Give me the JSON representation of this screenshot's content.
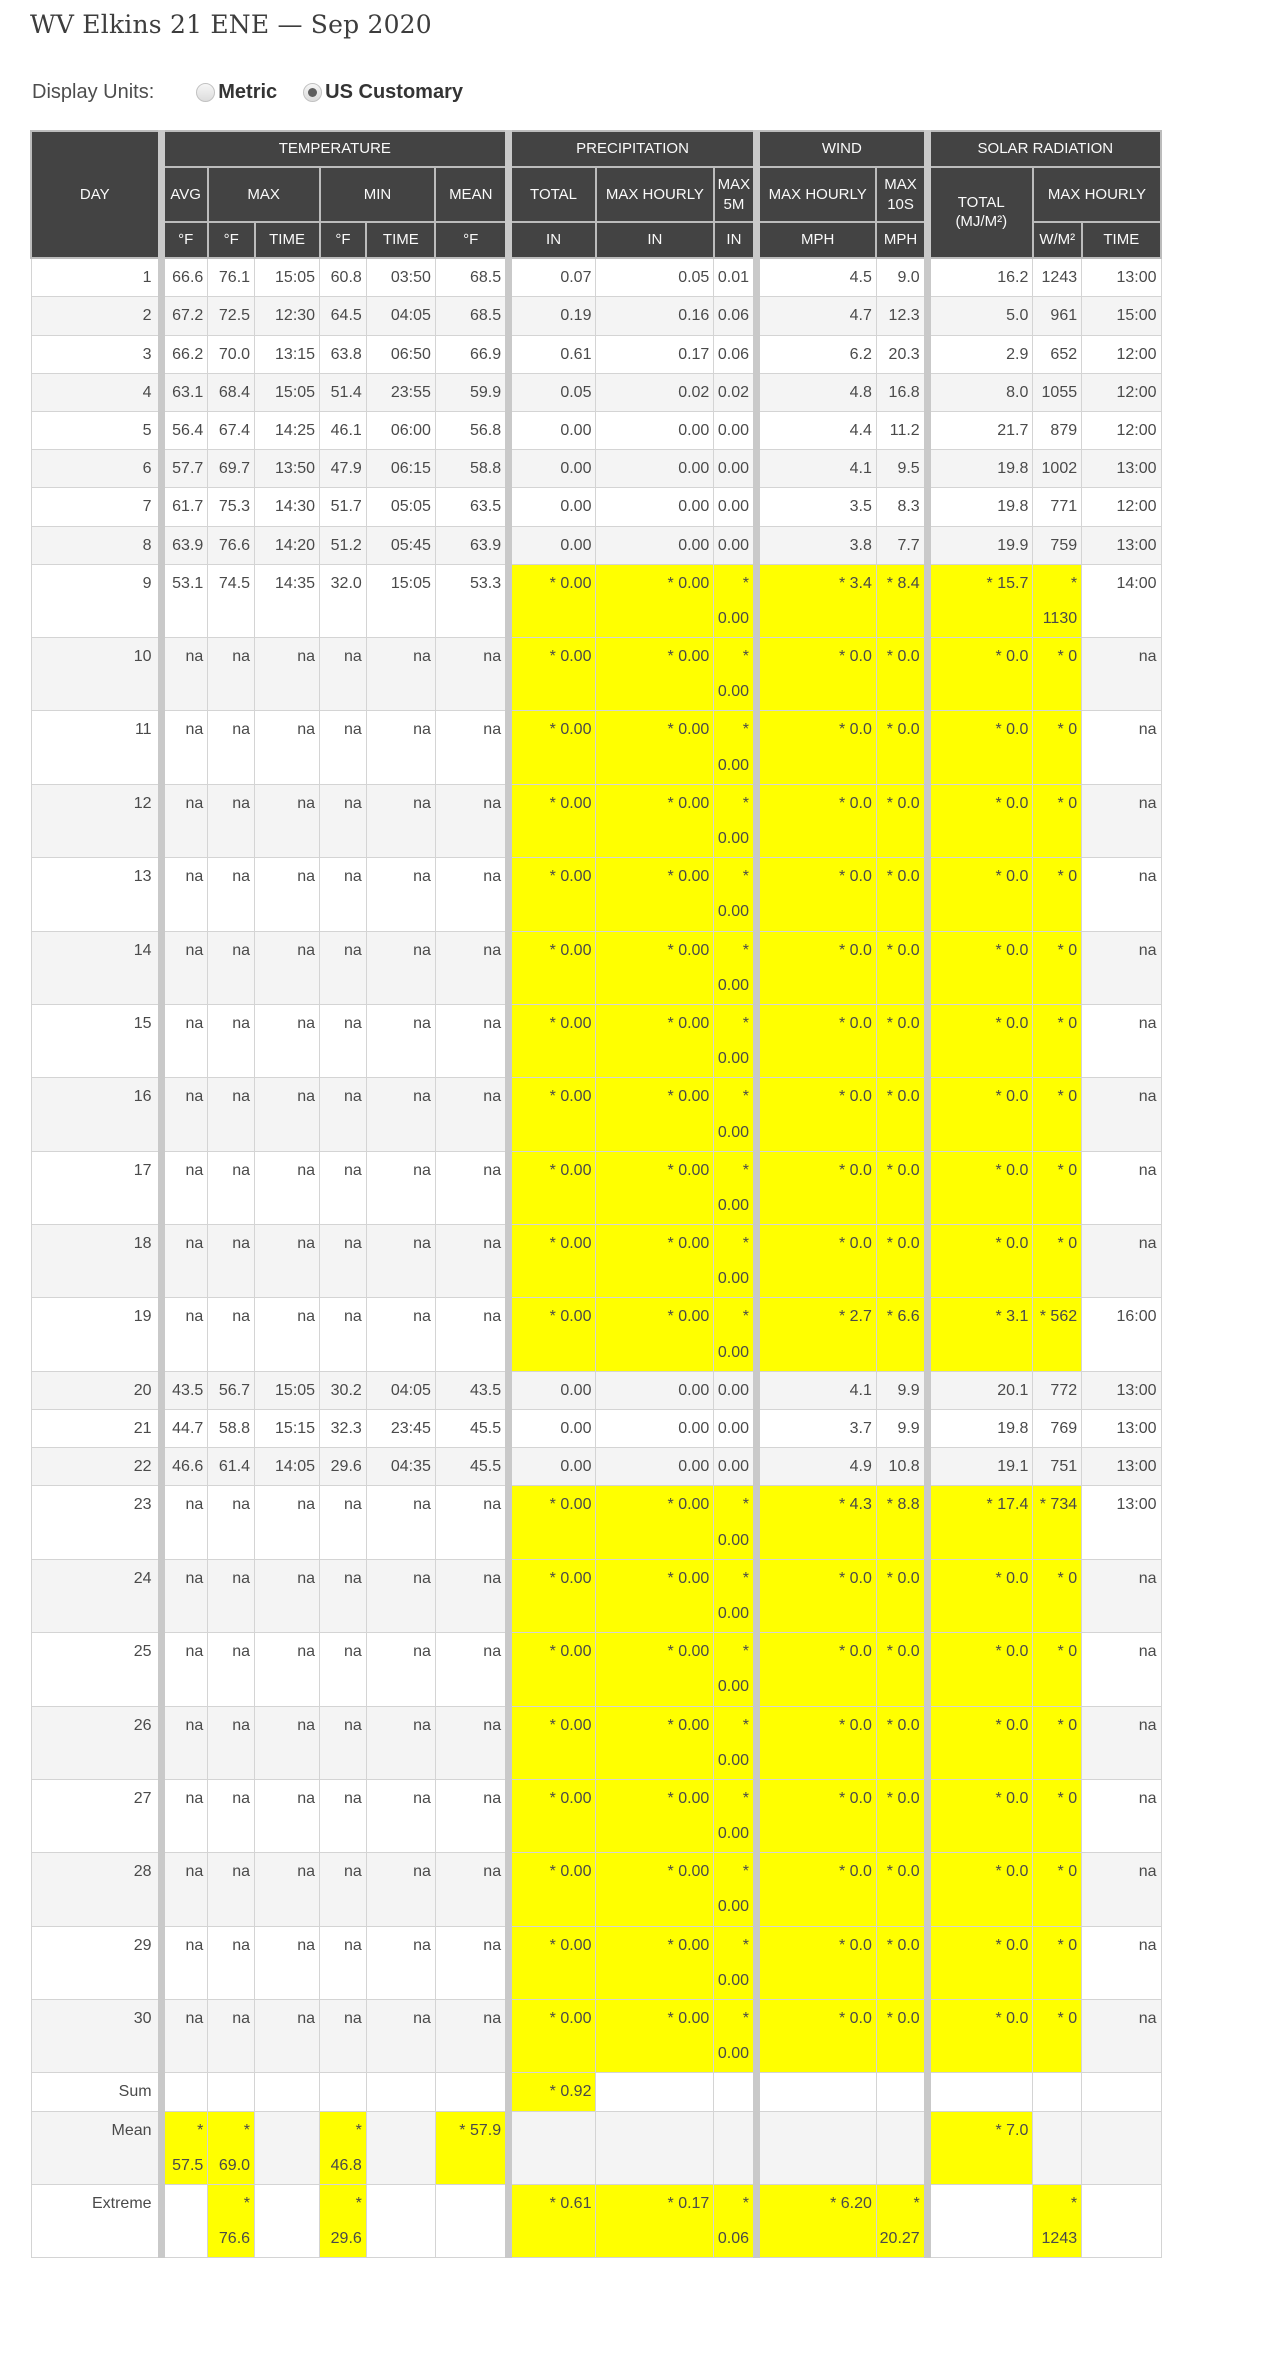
{
  "title": "WV Elkins 21 ENE — Sep 2020",
  "display_units": {
    "label": "Display Units:",
    "options": [
      {
        "label": "Metric",
        "selected": false
      },
      {
        "label": "US Customary",
        "selected": true
      }
    ]
  },
  "colors": {
    "highlight": "#ffff00",
    "header_bg": "#434343"
  },
  "table": {
    "header": {
      "day": "DAY",
      "groups": [
        "TEMPERATURE",
        "PRECIPITATION",
        "WIND",
        "SOLAR RADIATION"
      ],
      "sub": [
        "AVG",
        "MAX",
        "MIN",
        "MEAN",
        "TOTAL",
        "MAX HOURLY",
        "MAX 5M",
        "MAX HOURLY",
        "MAX 10S",
        "TOTAL (MJ/M²)",
        "MAX HOURLY"
      ],
      "units": [
        "°F",
        "°F",
        "TIME",
        "°F",
        "TIME",
        "°F",
        "IN",
        "IN",
        "IN",
        "MPH",
        "MPH",
        "W/M²",
        "TIME"
      ]
    },
    "col_keys": [
      "day",
      "temp-avg",
      "temp-max-f",
      "temp-max-time",
      "temp-min-f",
      "temp-min-time",
      "temp-mean",
      "precip-total",
      "precip-max-hourly",
      "precip-max-5m",
      "wind-max-hourly",
      "wind-max-10s",
      "solar-total",
      "solar-max-wm2",
      "solar-max-time"
    ],
    "rows": [
      {
        "cells": [
          "1",
          "66.6",
          "76.1",
          "15:05",
          "60.8",
          "03:50",
          "68.5",
          "0.07",
          "0.05",
          "0.01",
          "4.5",
          "9.0",
          "16.2",
          "1243",
          "13:00"
        ],
        "hl": []
      },
      {
        "cells": [
          "2",
          "67.2",
          "72.5",
          "12:30",
          "64.5",
          "04:05",
          "68.5",
          "0.19",
          "0.16",
          "0.06",
          "4.7",
          "12.3",
          "5.0",
          "961",
          "15:00"
        ],
        "hl": []
      },
      {
        "cells": [
          "3",
          "66.2",
          "70.0",
          "13:15",
          "63.8",
          "06:50",
          "66.9",
          "0.61",
          "0.17",
          "0.06",
          "6.2",
          "20.3",
          "2.9",
          "652",
          "12:00"
        ],
        "hl": []
      },
      {
        "cells": [
          "4",
          "63.1",
          "68.4",
          "15:05",
          "51.4",
          "23:55",
          "59.9",
          "0.05",
          "0.02",
          "0.02",
          "4.8",
          "16.8",
          "8.0",
          "1055",
          "12:00"
        ],
        "hl": []
      },
      {
        "cells": [
          "5",
          "56.4",
          "67.4",
          "14:25",
          "46.1",
          "06:00",
          "56.8",
          "0.00",
          "0.00",
          "0.00",
          "4.4",
          "11.2",
          "21.7",
          "879",
          "12:00"
        ],
        "hl": []
      },
      {
        "cells": [
          "6",
          "57.7",
          "69.7",
          "13:50",
          "47.9",
          "06:15",
          "58.8",
          "0.00",
          "0.00",
          "0.00",
          "4.1",
          "9.5",
          "19.8",
          "1002",
          "13:00"
        ],
        "hl": []
      },
      {
        "cells": [
          "7",
          "61.7",
          "75.3",
          "14:30",
          "51.7",
          "05:05",
          "63.5",
          "0.00",
          "0.00",
          "0.00",
          "3.5",
          "8.3",
          "19.8",
          "771",
          "12:00"
        ],
        "hl": []
      },
      {
        "cells": [
          "8",
          "63.9",
          "76.6",
          "14:20",
          "51.2",
          "05:45",
          "63.9",
          "0.00",
          "0.00",
          "0.00",
          "3.8",
          "7.7",
          "19.9",
          "759",
          "13:00"
        ],
        "hl": []
      },
      {
        "cells": [
          "9",
          "53.1",
          "74.5",
          "14:35",
          "32.0",
          "15:05",
          "53.3",
          "* 0.00",
          "* 0.00",
          "* 0.00",
          "* 3.4",
          "* 8.4",
          "* 15.7",
          "* 1130",
          "14:00"
        ],
        "hl": [
          7,
          8,
          9,
          10,
          11,
          12,
          13
        ]
      },
      {
        "cells": [
          "10",
          "na",
          "na",
          "na",
          "na",
          "na",
          "na",
          "* 0.00",
          "* 0.00",
          "* 0.00",
          "* 0.0",
          "* 0.0",
          "* 0.0",
          "* 0",
          "na"
        ],
        "hl": [
          7,
          8,
          9,
          10,
          11,
          12,
          13
        ]
      },
      {
        "cells": [
          "11",
          "na",
          "na",
          "na",
          "na",
          "na",
          "na",
          "* 0.00",
          "* 0.00",
          "* 0.00",
          "* 0.0",
          "* 0.0",
          "* 0.0",
          "* 0",
          "na"
        ],
        "hl": [
          7,
          8,
          9,
          10,
          11,
          12,
          13
        ]
      },
      {
        "cells": [
          "12",
          "na",
          "na",
          "na",
          "na",
          "na",
          "na",
          "* 0.00",
          "* 0.00",
          "* 0.00",
          "* 0.0",
          "* 0.0",
          "* 0.0",
          "* 0",
          "na"
        ],
        "hl": [
          7,
          8,
          9,
          10,
          11,
          12,
          13
        ]
      },
      {
        "cells": [
          "13",
          "na",
          "na",
          "na",
          "na",
          "na",
          "na",
          "* 0.00",
          "* 0.00",
          "* 0.00",
          "* 0.0",
          "* 0.0",
          "* 0.0",
          "* 0",
          "na"
        ],
        "hl": [
          7,
          8,
          9,
          10,
          11,
          12,
          13
        ]
      },
      {
        "cells": [
          "14",
          "na",
          "na",
          "na",
          "na",
          "na",
          "na",
          "* 0.00",
          "* 0.00",
          "* 0.00",
          "* 0.0",
          "* 0.0",
          "* 0.0",
          "* 0",
          "na"
        ],
        "hl": [
          7,
          8,
          9,
          10,
          11,
          12,
          13
        ]
      },
      {
        "cells": [
          "15",
          "na",
          "na",
          "na",
          "na",
          "na",
          "na",
          "* 0.00",
          "* 0.00",
          "* 0.00",
          "* 0.0",
          "* 0.0",
          "* 0.0",
          "* 0",
          "na"
        ],
        "hl": [
          7,
          8,
          9,
          10,
          11,
          12,
          13
        ]
      },
      {
        "cells": [
          "16",
          "na",
          "na",
          "na",
          "na",
          "na",
          "na",
          "* 0.00",
          "* 0.00",
          "* 0.00",
          "* 0.0",
          "* 0.0",
          "* 0.0",
          "* 0",
          "na"
        ],
        "hl": [
          7,
          8,
          9,
          10,
          11,
          12,
          13
        ]
      },
      {
        "cells": [
          "17",
          "na",
          "na",
          "na",
          "na",
          "na",
          "na",
          "* 0.00",
          "* 0.00",
          "* 0.00",
          "* 0.0",
          "* 0.0",
          "* 0.0",
          "* 0",
          "na"
        ],
        "hl": [
          7,
          8,
          9,
          10,
          11,
          12,
          13
        ]
      },
      {
        "cells": [
          "18",
          "na",
          "na",
          "na",
          "na",
          "na",
          "na",
          "* 0.00",
          "* 0.00",
          "* 0.00",
          "* 0.0",
          "* 0.0",
          "* 0.0",
          "* 0",
          "na"
        ],
        "hl": [
          7,
          8,
          9,
          10,
          11,
          12,
          13
        ]
      },
      {
        "cells": [
          "19",
          "na",
          "na",
          "na",
          "na",
          "na",
          "na",
          "* 0.00",
          "* 0.00",
          "* 0.00",
          "* 2.7",
          "* 6.6",
          "* 3.1",
          "* 562",
          "16:00"
        ],
        "hl": [
          7,
          8,
          9,
          10,
          11,
          12,
          13
        ]
      },
      {
        "cells": [
          "20",
          "43.5",
          "56.7",
          "15:05",
          "30.2",
          "04:05",
          "43.5",
          "0.00",
          "0.00",
          "0.00",
          "4.1",
          "9.9",
          "20.1",
          "772",
          "13:00"
        ],
        "hl": []
      },
      {
        "cells": [
          "21",
          "44.7",
          "58.8",
          "15:15",
          "32.3",
          "23:45",
          "45.5",
          "0.00",
          "0.00",
          "0.00",
          "3.7",
          "9.9",
          "19.8",
          "769",
          "13:00"
        ],
        "hl": []
      },
      {
        "cells": [
          "22",
          "46.6",
          "61.4",
          "14:05",
          "29.6",
          "04:35",
          "45.5",
          "0.00",
          "0.00",
          "0.00",
          "4.9",
          "10.8",
          "19.1",
          "751",
          "13:00"
        ],
        "hl": []
      },
      {
        "cells": [
          "23",
          "na",
          "na",
          "na",
          "na",
          "na",
          "na",
          "* 0.00",
          "* 0.00",
          "* 0.00",
          "* 4.3",
          "* 8.8",
          "* 17.4",
          "* 734",
          "13:00"
        ],
        "hl": [
          7,
          8,
          9,
          10,
          11,
          12,
          13
        ]
      },
      {
        "cells": [
          "24",
          "na",
          "na",
          "na",
          "na",
          "na",
          "na",
          "* 0.00",
          "* 0.00",
          "* 0.00",
          "* 0.0",
          "* 0.0",
          "* 0.0",
          "* 0",
          "na"
        ],
        "hl": [
          7,
          8,
          9,
          10,
          11,
          12,
          13
        ]
      },
      {
        "cells": [
          "25",
          "na",
          "na",
          "na",
          "na",
          "na",
          "na",
          "* 0.00",
          "* 0.00",
          "* 0.00",
          "* 0.0",
          "* 0.0",
          "* 0.0",
          "* 0",
          "na"
        ],
        "hl": [
          7,
          8,
          9,
          10,
          11,
          12,
          13
        ]
      },
      {
        "cells": [
          "26",
          "na",
          "na",
          "na",
          "na",
          "na",
          "na",
          "* 0.00",
          "* 0.00",
          "* 0.00",
          "* 0.0",
          "* 0.0",
          "* 0.0",
          "* 0",
          "na"
        ],
        "hl": [
          7,
          8,
          9,
          10,
          11,
          12,
          13
        ]
      },
      {
        "cells": [
          "27",
          "na",
          "na",
          "na",
          "na",
          "na",
          "na",
          "* 0.00",
          "* 0.00",
          "* 0.00",
          "* 0.0",
          "* 0.0",
          "* 0.0",
          "* 0",
          "na"
        ],
        "hl": [
          7,
          8,
          9,
          10,
          11,
          12,
          13
        ]
      },
      {
        "cells": [
          "28",
          "na",
          "na",
          "na",
          "na",
          "na",
          "na",
          "* 0.00",
          "* 0.00",
          "* 0.00",
          "* 0.0",
          "* 0.0",
          "* 0.0",
          "* 0",
          "na"
        ],
        "hl": [
          7,
          8,
          9,
          10,
          11,
          12,
          13
        ]
      },
      {
        "cells": [
          "29",
          "na",
          "na",
          "na",
          "na",
          "na",
          "na",
          "* 0.00",
          "* 0.00",
          "* 0.00",
          "* 0.0",
          "* 0.0",
          "* 0.0",
          "* 0",
          "na"
        ],
        "hl": [
          7,
          8,
          9,
          10,
          11,
          12,
          13
        ]
      },
      {
        "cells": [
          "30",
          "na",
          "na",
          "na",
          "na",
          "na",
          "na",
          "* 0.00",
          "* 0.00",
          "* 0.00",
          "* 0.0",
          "* 0.0",
          "* 0.0",
          "* 0",
          "na"
        ],
        "hl": [
          7,
          8,
          9,
          10,
          11,
          12,
          13
        ]
      },
      {
        "cells": [
          "Sum",
          "",
          "",
          "",
          "",
          "",
          "",
          "* 0.92",
          "",
          "",
          "",
          "",
          "",
          "",
          ""
        ],
        "hl": [
          7
        ]
      },
      {
        "cells": [
          "Mean",
          "* 57.5",
          "* 69.0",
          "",
          "* 46.8",
          "",
          "* 57.9",
          "",
          "",
          "",
          "",
          "",
          "* 7.0",
          "",
          ""
        ],
        "hl": [
          1,
          2,
          4,
          6,
          12
        ]
      },
      {
        "cells": [
          "Extreme",
          "",
          "* 76.6",
          "",
          "* 29.6",
          "",
          "",
          "* 0.61",
          "* 0.17",
          "* 0.06",
          "* 6.20",
          "* 20.27",
          "",
          "* 1243",
          ""
        ],
        "hl": [
          2,
          4,
          7,
          8,
          9,
          10,
          11,
          13
        ]
      }
    ]
  }
}
